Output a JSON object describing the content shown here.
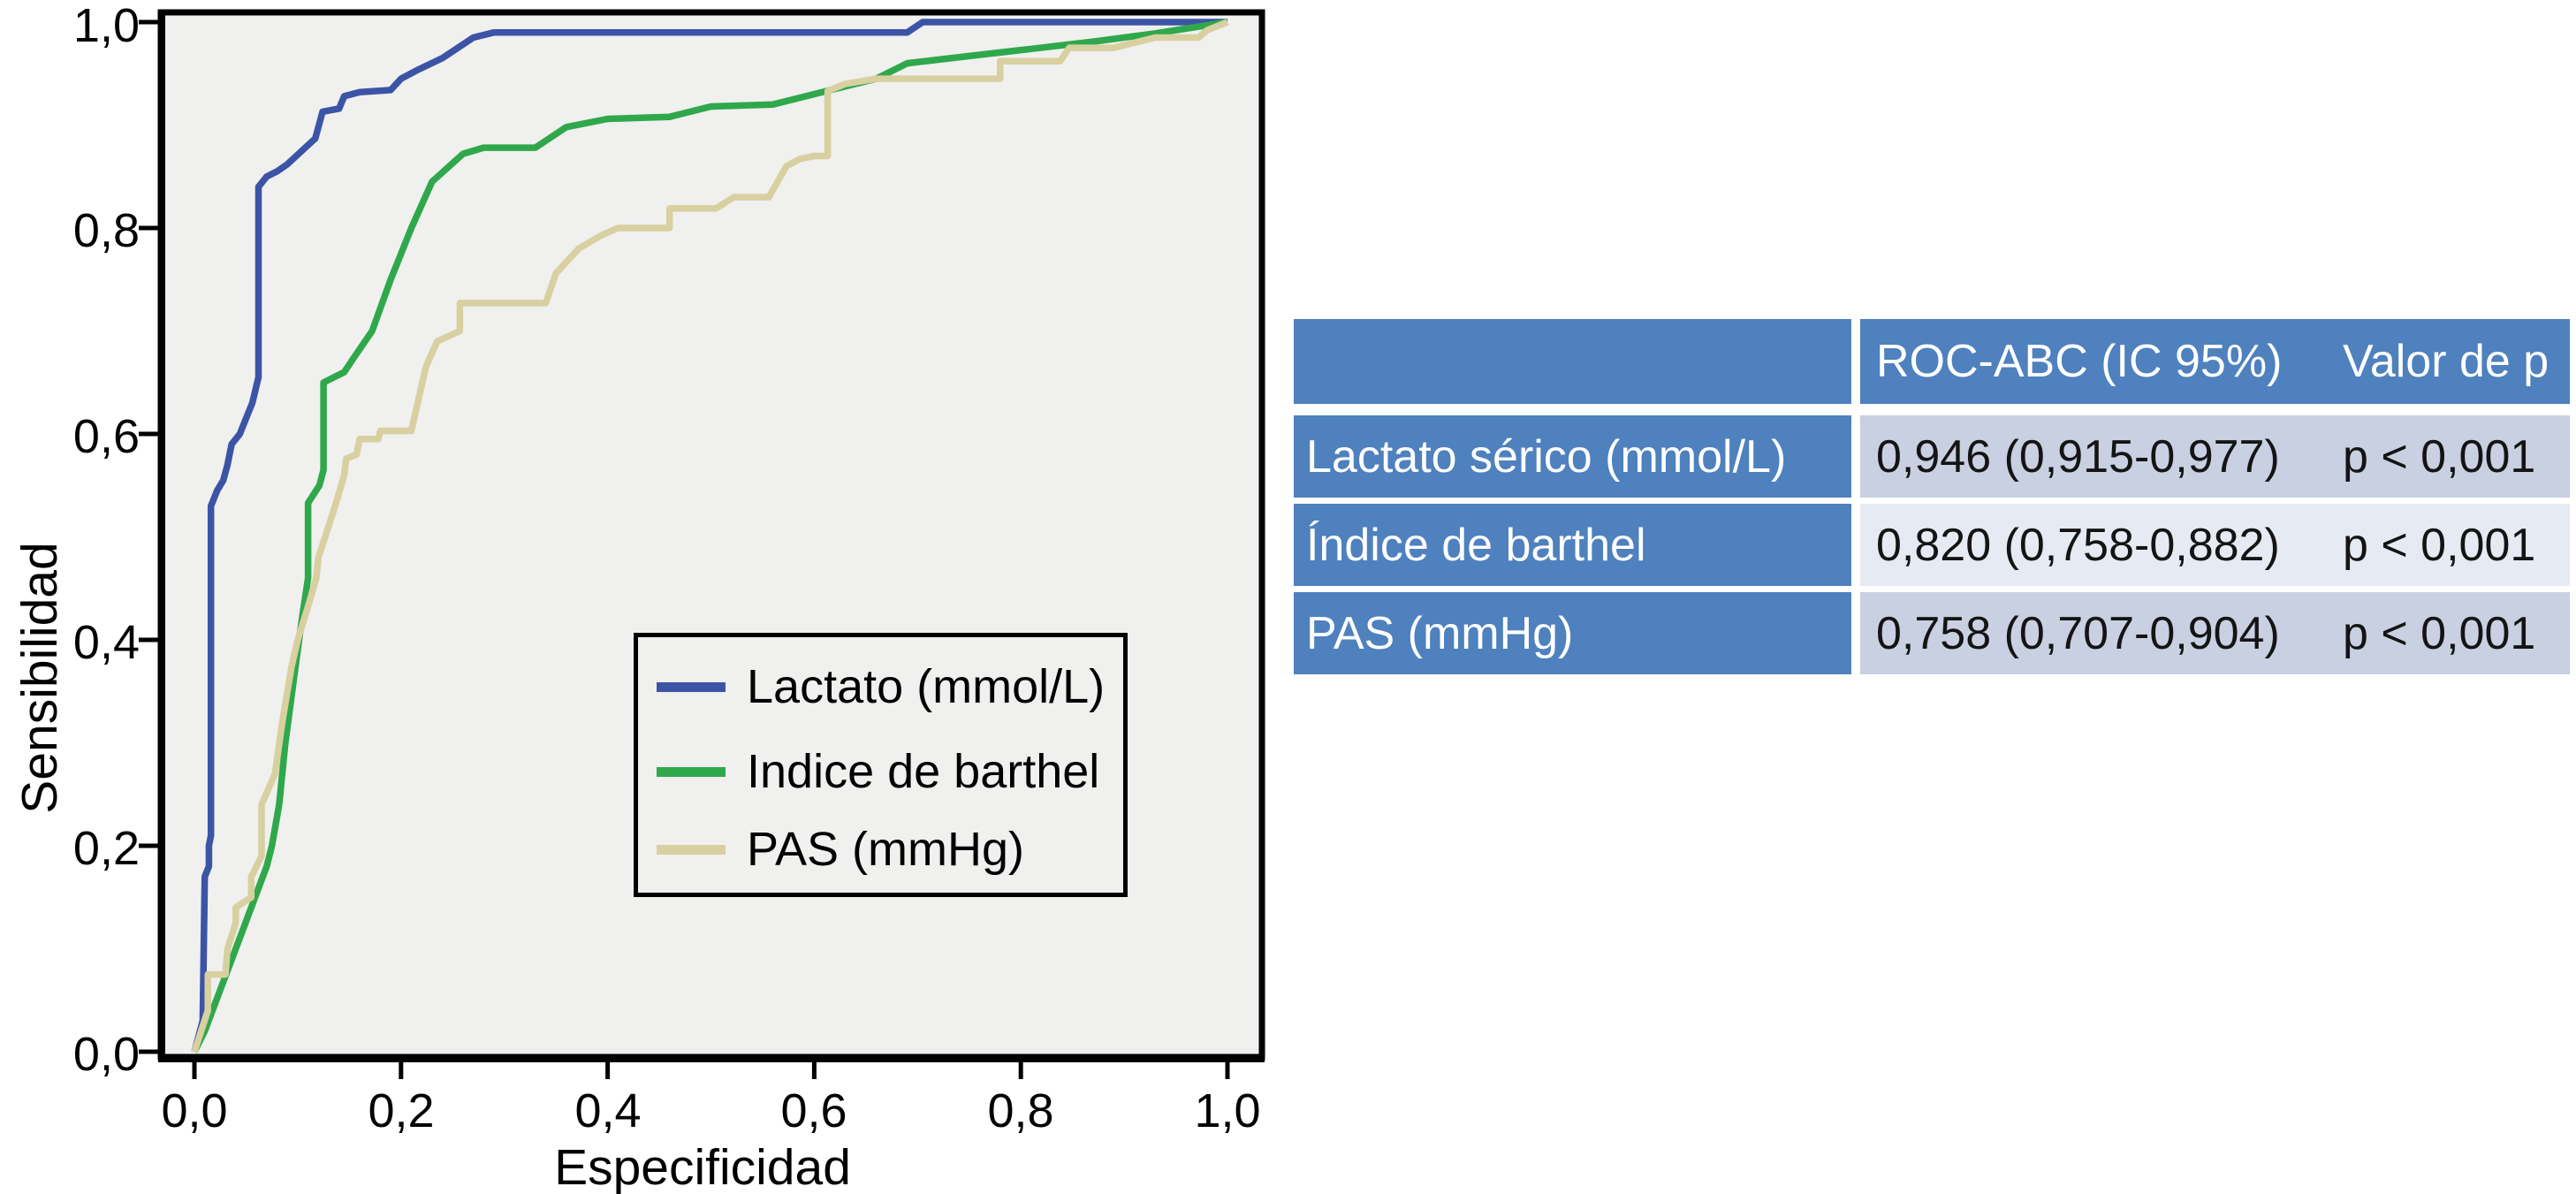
{
  "chart_data": {
    "type": "line",
    "subtype": "roc-curves",
    "title": "",
    "xlabel": "Especificidad",
    "ylabel": "Sensibilidad",
    "xlim": [
      0,
      1
    ],
    "ylim": [
      0,
      1
    ],
    "grid": false,
    "plot_bg": "#f0f0ef",
    "axis_color": "#000000",
    "x_tick_labels": [
      "0,0",
      "0,2",
      "0,4",
      "0,6",
      "0,8",
      "1,0"
    ],
    "y_tick_labels": [
      "0,0",
      "0,2",
      "0,4",
      "0,6",
      "0,8",
      "1,0"
    ],
    "tick_values": [
      0,
      0.2,
      0.4,
      0.6,
      0.8,
      1.0
    ],
    "legend_position": "lower-right",
    "series": [
      {
        "name": "Lactato (mmol/L)",
        "color": "#3c54a6",
        "points": [
          [
            0,
            0
          ],
          [
            0.008,
            0.03
          ],
          [
            0.01,
            0.17
          ],
          [
            0.014,
            0.18
          ],
          [
            0.014,
            0.2
          ],
          [
            0.016,
            0.21
          ],
          [
            0.016,
            0.53
          ],
          [
            0.022,
            0.545
          ],
          [
            0.028,
            0.555
          ],
          [
            0.032,
            0.57
          ],
          [
            0.036,
            0.59
          ],
          [
            0.044,
            0.6
          ],
          [
            0.05,
            0.615
          ],
          [
            0.056,
            0.63
          ],
          [
            0.062,
            0.655
          ],
          [
            0.062,
            0.84
          ],
          [
            0.07,
            0.85
          ],
          [
            0.08,
            0.855
          ],
          [
            0.09,
            0.862
          ],
          [
            0.103,
            0.874
          ],
          [
            0.117,
            0.887
          ],
          [
            0.124,
            0.913
          ],
          [
            0.14,
            0.916
          ],
          [
            0.145,
            0.928
          ],
          [
            0.16,
            0.932
          ],
          [
            0.19,
            0.934
          ],
          [
            0.2,
            0.945
          ],
          [
            0.215,
            0.953
          ],
          [
            0.24,
            0.965
          ],
          [
            0.255,
            0.975
          ],
          [
            0.27,
            0.985
          ],
          [
            0.29,
            0.99
          ],
          [
            0.69,
            0.99
          ],
          [
            0.705,
            1
          ],
          [
            1,
            1
          ]
        ]
      },
      {
        "name": "Indice de barthel",
        "color": "#2fa84b",
        "points": [
          [
            0,
            0
          ],
          [
            0.01,
            0.02
          ],
          [
            0.025,
            0.06
          ],
          [
            0.04,
            0.1
          ],
          [
            0.055,
            0.14
          ],
          [
            0.07,
            0.18
          ],
          [
            0.075,
            0.2
          ],
          [
            0.082,
            0.24
          ],
          [
            0.088,
            0.3
          ],
          [
            0.096,
            0.36
          ],
          [
            0.104,
            0.42
          ],
          [
            0.11,
            0.46
          ],
          [
            0.11,
            0.533
          ],
          [
            0.121,
            0.55
          ],
          [
            0.125,
            0.565
          ],
          [
            0.125,
            0.65
          ],
          [
            0.145,
            0.66
          ],
          [
            0.155,
            0.675
          ],
          [
            0.172,
            0.7
          ],
          [
            0.19,
            0.75
          ],
          [
            0.21,
            0.8
          ],
          [
            0.23,
            0.845
          ],
          [
            0.26,
            0.872
          ],
          [
            0.28,
            0.878
          ],
          [
            0.33,
            0.878
          ],
          [
            0.36,
            0.898
          ],
          [
            0.4,
            0.906
          ],
          [
            0.46,
            0.908
          ],
          [
            0.5,
            0.918
          ],
          [
            0.56,
            0.92
          ],
          [
            0.6,
            0.93
          ],
          [
            0.64,
            0.94
          ],
          [
            0.66,
            0.945
          ],
          [
            0.69,
            0.96
          ],
          [
            0.75,
            0.967
          ],
          [
            0.81,
            0.974
          ],
          [
            0.87,
            0.981
          ],
          [
            0.93,
            0.989
          ],
          [
            1,
            1
          ]
        ]
      },
      {
        "name": "PAS (mmHg)",
        "color": "#d8d0a0",
        "points": [
          [
            0,
            0
          ],
          [
            0.013,
            0.04
          ],
          [
            0.013,
            0.075
          ],
          [
            0.03,
            0.075
          ],
          [
            0.032,
            0.1
          ],
          [
            0.04,
            0.125
          ],
          [
            0.04,
            0.14
          ],
          [
            0.055,
            0.15
          ],
          [
            0.055,
            0.17
          ],
          [
            0.065,
            0.19
          ],
          [
            0.065,
            0.24
          ],
          [
            0.078,
            0.27
          ],
          [
            0.085,
            0.32
          ],
          [
            0.09,
            0.35
          ],
          [
            0.094,
            0.374
          ],
          [
            0.1,
            0.4
          ],
          [
            0.111,
            0.436
          ],
          [
            0.118,
            0.46
          ],
          [
            0.12,
            0.48
          ],
          [
            0.133,
            0.52
          ],
          [
            0.138,
            0.536
          ],
          [
            0.145,
            0.56
          ],
          [
            0.147,
            0.576
          ],
          [
            0.157,
            0.58
          ],
          [
            0.16,
            0.595
          ],
          [
            0.178,
            0.595
          ],
          [
            0.18,
            0.603
          ],
          [
            0.21,
            0.603
          ],
          [
            0.224,
            0.665
          ],
          [
            0.235,
            0.69
          ],
          [
            0.257,
            0.7
          ],
          [
            0.257,
            0.727
          ],
          [
            0.34,
            0.727
          ],
          [
            0.35,
            0.756
          ],
          [
            0.372,
            0.78
          ],
          [
            0.394,
            0.793
          ],
          [
            0.41,
            0.8
          ],
          [
            0.46,
            0.8
          ],
          [
            0.46,
            0.819
          ],
          [
            0.505,
            0.819
          ],
          [
            0.522,
            0.83
          ],
          [
            0.556,
            0.83
          ],
          [
            0.573,
            0.86
          ],
          [
            0.586,
            0.867
          ],
          [
            0.6,
            0.87
          ],
          [
            0.613,
            0.87
          ],
          [
            0.613,
            0.933
          ],
          [
            0.63,
            0.94
          ],
          [
            0.66,
            0.945
          ],
          [
            0.78,
            0.945
          ],
          [
            0.78,
            0.962
          ],
          [
            0.838,
            0.962
          ],
          [
            0.847,
            0.975
          ],
          [
            0.89,
            0.975
          ],
          [
            0.93,
            0.985
          ],
          [
            0.972,
            0.985
          ],
          [
            0.98,
            0.992
          ],
          [
            1,
            1
          ]
        ]
      }
    ]
  },
  "table": {
    "colors": {
      "header_bg": "#4e81bd",
      "row_band_dark": "#c9d0e1",
      "row_band_light": "#e6eaf3",
      "header_text": "#ffffff",
      "body_text": "#141414"
    },
    "header": {
      "col1": "",
      "col2": "ROC-ABC (IC 95%)",
      "col3": "Valor de p"
    },
    "rows": [
      {
        "label": "Lactato sérico (mmol/L)",
        "roc_abc": "0,946 (0,915-0,977)",
        "p_value": "p < 0,001"
      },
      {
        "label": "Índice de barthel",
        "roc_abc": "0,820 (0,758-0,882)",
        "p_value": "p < 0,001"
      },
      {
        "label": "PAS  (mmHg)",
        "roc_abc": "0,758 (0,707-0,904)",
        "p_value": "p < 0,001"
      }
    ]
  }
}
